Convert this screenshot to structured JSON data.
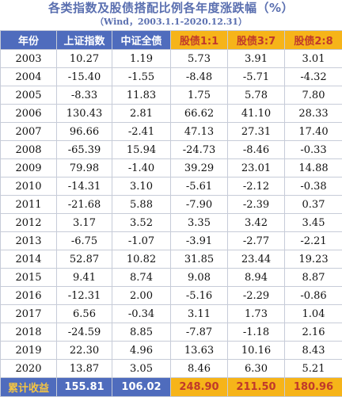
{
  "title": "各类指数及股债搭配比例各年度涨跌幅（%）",
  "subtitle": "（Wind，2003.1.1-2020.12.31）",
  "colors": {
    "header_blue": "#4f6cbd",
    "header_orange": "#f6b419",
    "orange_text": "#c0392b"
  },
  "headers": [
    "年份",
    "上证指数",
    "中证全债",
    "股债1:1",
    "股债3:7",
    "股债2:8"
  ],
  "rows": [
    [
      "2003",
      "10.27",
      "1.19",
      "5.73",
      "3.91",
      "3.01"
    ],
    [
      "2004",
      "-15.40",
      "-1.55",
      "-8.48",
      "-5.71",
      "-4.32"
    ],
    [
      "2005",
      "-8.33",
      "11.83",
      "1.75",
      "5.78",
      "7.80"
    ],
    [
      "2006",
      "130.43",
      "2.81",
      "66.62",
      "41.10",
      "28.33"
    ],
    [
      "2007",
      "96.66",
      "-2.41",
      "47.13",
      "27.31",
      "17.40"
    ],
    [
      "2008",
      "-65.39",
      "15.94",
      "-24.73",
      "-8.46",
      "-0.33"
    ],
    [
      "2009",
      "79.98",
      "-1.40",
      "39.29",
      "23.01",
      "14.88"
    ],
    [
      "2010",
      "-14.31",
      "3.10",
      "-5.61",
      "-2.12",
      "-0.38"
    ],
    [
      "2011",
      "-21.68",
      "5.88",
      "-7.90",
      "-2.39",
      "0.37"
    ],
    [
      "2012",
      "3.17",
      "3.52",
      "3.35",
      "3.42",
      "3.45"
    ],
    [
      "2013",
      "-6.75",
      "-1.07",
      "-3.91",
      "-2.77",
      "-2.21"
    ],
    [
      "2014",
      "52.87",
      "10.82",
      "31.85",
      "23.44",
      "19.23"
    ],
    [
      "2015",
      "9.41",
      "8.74",
      "9.08",
      "8.94",
      "8.87"
    ],
    [
      "2016",
      "-12.31",
      "2.00",
      "-5.16",
      "-2.29",
      "-0.86"
    ],
    [
      "2017",
      "6.56",
      "-0.34",
      "3.11",
      "1.73",
      "1.04"
    ],
    [
      "2018",
      "-24.59",
      "8.85",
      "-7.87",
      "-1.18",
      "2.16"
    ],
    [
      "2019",
      "22.30",
      "4.96",
      "13.63",
      "10.16",
      "8.43"
    ],
    [
      "2020",
      "13.87",
      "3.05",
      "8.46",
      "6.30",
      "5.21"
    ]
  ],
  "footer": [
    "累计收益",
    "155.81",
    "106.02",
    "248.90",
    "211.50",
    "180.96"
  ]
}
